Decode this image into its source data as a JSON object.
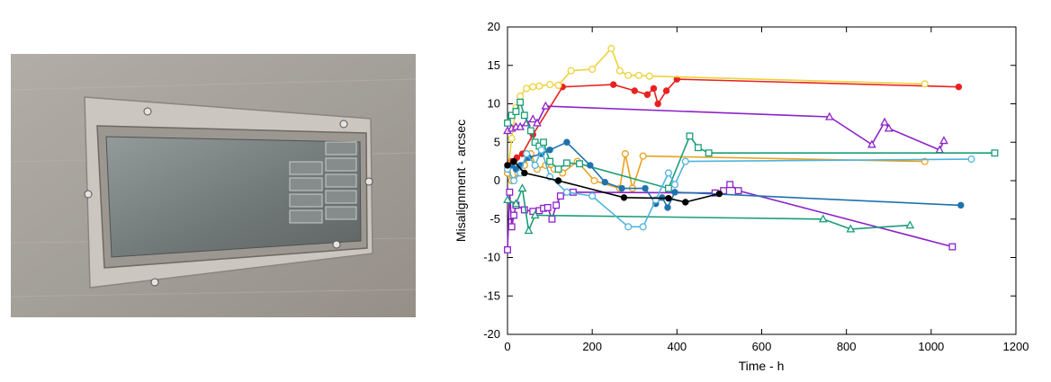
{
  "photo": {
    "subject": "mounted-glass-panel-photo",
    "colors": {
      "wall": "#a7a29b",
      "frame": "#c9c4bd",
      "glass": "#7d8383"
    }
  },
  "chart_data": {
    "type": "scatter",
    "connected": true,
    "title": "",
    "xlabel": "Time - h",
    "ylabel": "Misalignment - arcsec",
    "xlim": [
      0,
      1200
    ],
    "ylim": [
      -20,
      20
    ],
    "xticks": [
      0,
      200,
      400,
      600,
      800,
      1000,
      1200
    ],
    "yticks": [
      -20,
      -15,
      -10,
      -5,
      0,
      5,
      10,
      15,
      20
    ],
    "grid": false,
    "legend": "none",
    "series": [
      {
        "color": "#e8211f",
        "marker": "filled-circle",
        "x": [
          0,
          8,
          15,
          22,
          35,
          60,
          130,
          250,
          300,
          330,
          345,
          355,
          375,
          400,
          1065
        ],
        "y": [
          2,
          2.5,
          2.5,
          3,
          3.5,
          6,
          12.2,
          12.5,
          11.7,
          11.2,
          12,
          10,
          11.7,
          13.2,
          12.2
        ]
      },
      {
        "color": "#ecd33c",
        "marker": "open-circle",
        "x": [
          0,
          10,
          20,
          30,
          45,
          60,
          75,
          100,
          120,
          150,
          200,
          245,
          265,
          285,
          310,
          335,
          985
        ],
        "y": [
          1,
          5.5,
          9.5,
          11,
          12,
          12.2,
          12.3,
          12.5,
          12.4,
          14.3,
          14.5,
          17.2,
          14.3,
          13.7,
          13.7,
          13.6,
          12.6
        ]
      },
      {
        "color": "#e8a21e",
        "marker": "open-circle",
        "x": [
          0,
          10,
          25,
          40,
          55,
          70,
          90,
          110,
          130,
          165,
          205,
          265,
          278,
          295,
          320,
          985
        ],
        "y": [
          1,
          0,
          1,
          2,
          3.5,
          1.5,
          2,
          1.5,
          1,
          2.5,
          0,
          -1,
          3.5,
          -1,
          3.2,
          2.5
        ]
      },
      {
        "color": "#8c22c8",
        "marker": "open-triangle",
        "x": [
          0,
          10,
          20,
          30,
          45,
          60,
          70,
          90,
          760,
          860,
          890,
          900,
          1020,
          1030
        ],
        "y": [
          6.5,
          6.8,
          7,
          7,
          7.5,
          8,
          7.5,
          9.7,
          8.3,
          4.7,
          7.6,
          6.8,
          4,
          5.2
        ]
      },
      {
        "color": "#8c22c8",
        "marker": "open-square",
        "x": [
          0,
          5,
          10,
          15,
          20,
          40,
          60,
          75,
          85,
          95,
          105,
          115,
          125,
          155,
          490,
          510,
          525,
          545,
          1050
        ],
        "y": [
          -9,
          -1.5,
          -6,
          -4.5,
          -3.2,
          -3.8,
          -4,
          -3.9,
          -3.6,
          -3.5,
          -5,
          -3.2,
          -2,
          -1.5,
          -1.6,
          -1.3,
          -0.5,
          -1.3,
          -8.6
        ]
      },
      {
        "color": "#1a9d78",
        "marker": "open-square",
        "x": [
          0,
          10,
          20,
          30,
          40,
          55,
          65,
          75,
          85,
          100,
          120,
          140,
          170,
          380,
          430,
          450,
          475,
          1150
        ],
        "y": [
          7.5,
          8.5,
          9,
          10.2,
          8.5,
          6.5,
          5,
          4.5,
          5,
          2.5,
          1.5,
          2.3,
          2.2,
          -1,
          5.8,
          4.3,
          3.6,
          3.6
        ]
      },
      {
        "color": "#1a9d78",
        "marker": "open-triangle",
        "x": [
          0,
          20,
          35,
          50,
          65,
          745,
          810,
          950
        ],
        "y": [
          -2.5,
          -3,
          -1,
          -6.5,
          -4.5,
          -5,
          -6.3,
          -5.8
        ]
      },
      {
        "color": "#1f72ad",
        "marker": "filled-circle",
        "x": [
          0,
          10,
          20,
          30,
          50,
          80,
          100,
          140,
          195,
          230,
          270,
          325,
          350,
          365,
          378,
          395,
          1070
        ],
        "y": [
          1.5,
          2,
          1.5,
          2,
          3,
          3.5,
          4,
          5,
          2,
          -0.2,
          -1,
          -1,
          -3,
          -2.2,
          -3.5,
          -1.5,
          -3.2
        ]
      },
      {
        "color": "#4fb3de",
        "marker": "open-circle",
        "x": [
          0,
          15,
          30,
          45,
          65,
          80,
          100,
          140,
          200,
          285,
          320,
          350,
          380,
          395,
          420,
          1095
        ],
        "y": [
          1.5,
          0,
          1,
          3.5,
          2,
          4,
          0.5,
          -1.5,
          -2,
          -6,
          -6,
          -2.5,
          1,
          -0.5,
          2.5,
          2.8
        ]
      },
      {
        "color": "#000000",
        "marker": "filled-circle",
        "x": [
          0,
          15,
          40,
          120,
          275,
          380,
          420,
          500
        ],
        "y": [
          2,
          2.5,
          1,
          0,
          -2.2,
          -2.3,
          -2.8,
          -1.7
        ]
      }
    ]
  }
}
